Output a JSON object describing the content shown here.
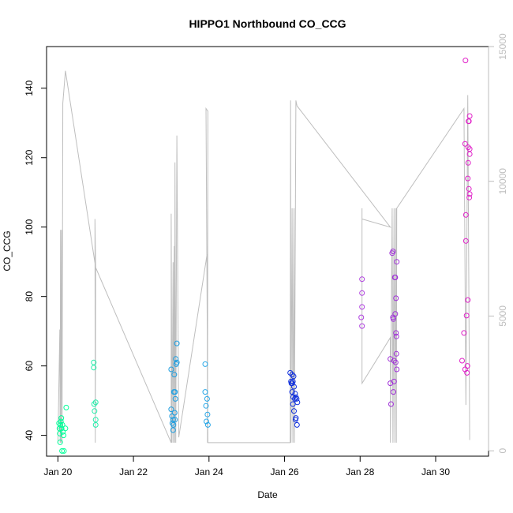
{
  "chart_data": {
    "type": "scatter",
    "title": "HIPPO1 Northbound CO_CCG",
    "xlabel": "Date",
    "ylabel": "CO_CCG",
    "x_ticks": [
      "Jan 20",
      "Jan 22",
      "Jan 24",
      "Jan 26",
      "Jan 28",
      "Jan 30"
    ],
    "x_tick_values": [
      20,
      22,
      24,
      26,
      28,
      30
    ],
    "xlim": [
      19.7,
      31.4
    ],
    "y_ticks": [
      "40",
      "60",
      "80",
      "100",
      "120",
      "140"
    ],
    "y_tick_values": [
      40,
      60,
      80,
      100,
      120,
      140
    ],
    "ylim": [
      34,
      152
    ],
    "y2_ticks": [
      "0",
      "5000",
      "10000",
      "15000"
    ],
    "y2_tick_values": [
      0,
      5000,
      10000,
      15000
    ],
    "y2lim": [
      -200,
      15000
    ],
    "grid": false,
    "colors": {
      "altitude_line": "#bebebe",
      "secondary_axis": "#bebebe",
      "axis": "#000000"
    },
    "points": [
      {
        "x": 20.03,
        "y": 43.5,
        "color": "#00ff99"
      },
      {
        "x": 20.04,
        "y": 42.0,
        "color": "#00ff99"
      },
      {
        "x": 20.05,
        "y": 40.5,
        "color": "#00ff99"
      },
      {
        "x": 20.06,
        "y": 38.0,
        "color": "#00ff99"
      },
      {
        "x": 20.07,
        "y": 43.0,
        "color": "#00ff99"
      },
      {
        "x": 20.08,
        "y": 44.0,
        "color": "#00ff99"
      },
      {
        "x": 20.09,
        "y": 45.0,
        "color": "#00ff99"
      },
      {
        "x": 20.1,
        "y": 42.0,
        "color": "#00ff99"
      },
      {
        "x": 20.11,
        "y": 35.5,
        "color": "#00ff99"
      },
      {
        "x": 20.12,
        "y": 43.0,
        "color": "#00ff99"
      },
      {
        "x": 20.13,
        "y": 41.0,
        "color": "#00ff99"
      },
      {
        "x": 20.15,
        "y": 40.0,
        "color": "#00ff99"
      },
      {
        "x": 20.16,
        "y": 35.5,
        "color": "#00ff99"
      },
      {
        "x": 20.2,
        "y": 42.0,
        "color": "#00ff99"
      },
      {
        "x": 20.22,
        "y": 48.0,
        "color": "#00ff99"
      },
      {
        "x": 20.95,
        "y": 61.0,
        "color": "#22eeaa"
      },
      {
        "x": 20.95,
        "y": 59.5,
        "color": "#22eeaa"
      },
      {
        "x": 20.96,
        "y": 49.0,
        "color": "#22eeaa"
      },
      {
        "x": 20.97,
        "y": 47.0,
        "color": "#22eeaa"
      },
      {
        "x": 21.0,
        "y": 49.5,
        "color": "#22eeaa"
      },
      {
        "x": 21.0,
        "y": 44.5,
        "color": "#22eeaa"
      },
      {
        "x": 21.0,
        "y": 43.0,
        "color": "#22eeaa"
      },
      {
        "x": 23.0,
        "y": 59.0,
        "color": "#1e9ee0"
      },
      {
        "x": 23.0,
        "y": 47.5,
        "color": "#1e9ee0"
      },
      {
        "x": 23.02,
        "y": 45.5,
        "color": "#1e9ee0"
      },
      {
        "x": 23.03,
        "y": 43.5,
        "color": "#1e9ee0"
      },
      {
        "x": 23.05,
        "y": 44.5,
        "color": "#1e9ee0"
      },
      {
        "x": 23.05,
        "y": 41.5,
        "color": "#1e9ee0"
      },
      {
        "x": 23.06,
        "y": 43.0,
        "color": "#1e9ee0"
      },
      {
        "x": 23.07,
        "y": 52.5,
        "color": "#1e9ee0"
      },
      {
        "x": 23.08,
        "y": 57.5,
        "color": "#1e9ee0"
      },
      {
        "x": 23.09,
        "y": 46.5,
        "color": "#1e9ee0"
      },
      {
        "x": 23.1,
        "y": 52.5,
        "color": "#1e9ee0"
      },
      {
        "x": 23.1,
        "y": 44.5,
        "color": "#1e9ee0"
      },
      {
        "x": 23.11,
        "y": 50.5,
        "color": "#1e9ee0"
      },
      {
        "x": 23.12,
        "y": 62.0,
        "color": "#1e9ee0"
      },
      {
        "x": 23.13,
        "y": 60.5,
        "color": "#1e9ee0"
      },
      {
        "x": 23.15,
        "y": 61.0,
        "color": "#1e9ee0"
      },
      {
        "x": 23.15,
        "y": 66.5,
        "color": "#1e9ee0"
      },
      {
        "x": 23.9,
        "y": 60.5,
        "color": "#2aa8e8"
      },
      {
        "x": 23.9,
        "y": 52.5,
        "color": "#2aa8e8"
      },
      {
        "x": 23.92,
        "y": 48.5,
        "color": "#2aa8e8"
      },
      {
        "x": 23.93,
        "y": 44.0,
        "color": "#2aa8e8"
      },
      {
        "x": 23.95,
        "y": 50.5,
        "color": "#2aa8e8"
      },
      {
        "x": 23.96,
        "y": 46.0,
        "color": "#2aa8e8"
      },
      {
        "x": 23.97,
        "y": 43.0,
        "color": "#2aa8e8"
      },
      {
        "x": 26.15,
        "y": 58.0,
        "color": "#1030dd"
      },
      {
        "x": 26.17,
        "y": 55.5,
        "color": "#1030dd"
      },
      {
        "x": 26.18,
        "y": 55.0,
        "color": "#1030dd"
      },
      {
        "x": 26.2,
        "y": 57.5,
        "color": "#1030dd"
      },
      {
        "x": 26.2,
        "y": 55.0,
        "color": "#1030dd"
      },
      {
        "x": 26.2,
        "y": 52.5,
        "color": "#1030dd"
      },
      {
        "x": 26.22,
        "y": 55.5,
        "color": "#1030dd"
      },
      {
        "x": 26.22,
        "y": 49.0,
        "color": "#1030dd"
      },
      {
        "x": 26.23,
        "y": 51.0,
        "color": "#1030dd"
      },
      {
        "x": 26.24,
        "y": 57.0,
        "color": "#1030dd"
      },
      {
        "x": 26.25,
        "y": 54.0,
        "color": "#1030dd"
      },
      {
        "x": 26.25,
        "y": 47.0,
        "color": "#1030dd"
      },
      {
        "x": 26.27,
        "y": 50.5,
        "color": "#1030dd"
      },
      {
        "x": 26.28,
        "y": 52.0,
        "color": "#1030dd"
      },
      {
        "x": 26.29,
        "y": 44.5,
        "color": "#1030dd"
      },
      {
        "x": 26.3,
        "y": 51.0,
        "color": "#1030dd"
      },
      {
        "x": 26.3,
        "y": 45.0,
        "color": "#1030dd"
      },
      {
        "x": 26.32,
        "y": 50.5,
        "color": "#1030dd"
      },
      {
        "x": 26.33,
        "y": 43.0,
        "color": "#1030dd"
      },
      {
        "x": 26.34,
        "y": 49.5,
        "color": "#1030dd"
      },
      {
        "x": 28.05,
        "y": 85.0,
        "color": "#b040e0"
      },
      {
        "x": 28.05,
        "y": 81.0,
        "color": "#b040e0"
      },
      {
        "x": 28.05,
        "y": 77.0,
        "color": "#b040e0"
      },
      {
        "x": 28.03,
        "y": 74.0,
        "color": "#b040e0"
      },
      {
        "x": 28.05,
        "y": 71.5,
        "color": "#b040e0"
      },
      {
        "x": 28.8,
        "y": 62.0,
        "color": "#a030d8"
      },
      {
        "x": 28.8,
        "y": 55.0,
        "color": "#a030d8"
      },
      {
        "x": 28.82,
        "y": 49.0,
        "color": "#a030d8"
      },
      {
        "x": 28.85,
        "y": 92.5,
        "color": "#a030d8"
      },
      {
        "x": 28.87,
        "y": 93.0,
        "color": "#a030d8"
      },
      {
        "x": 28.87,
        "y": 74.0,
        "color": "#a030d8"
      },
      {
        "x": 28.88,
        "y": 73.5,
        "color": "#a030d8"
      },
      {
        "x": 28.88,
        "y": 52.5,
        "color": "#a030d8"
      },
      {
        "x": 28.9,
        "y": 61.5,
        "color": "#a030d8"
      },
      {
        "x": 28.9,
        "y": 55.5,
        "color": "#a030d8"
      },
      {
        "x": 28.92,
        "y": 85.5,
        "color": "#a030d8"
      },
      {
        "x": 28.93,
        "y": 85.5,
        "color": "#a030d8"
      },
      {
        "x": 28.93,
        "y": 75.0,
        "color": "#a030d8"
      },
      {
        "x": 28.94,
        "y": 61.0,
        "color": "#a030d8"
      },
      {
        "x": 28.95,
        "y": 79.5,
        "color": "#a030d8"
      },
      {
        "x": 28.95,
        "y": 69.5,
        "color": "#a030d8"
      },
      {
        "x": 28.96,
        "y": 68.5,
        "color": "#a030d8"
      },
      {
        "x": 28.96,
        "y": 63.5,
        "color": "#a030d8"
      },
      {
        "x": 28.97,
        "y": 90.0,
        "color": "#a030d8"
      },
      {
        "x": 28.97,
        "y": 59.0,
        "color": "#a030d8"
      },
      {
        "x": 30.7,
        "y": 61.5,
        "color": "#e020c8"
      },
      {
        "x": 30.75,
        "y": 69.5,
        "color": "#e020c8"
      },
      {
        "x": 30.78,
        "y": 59.0,
        "color": "#e020c8"
      },
      {
        "x": 30.78,
        "y": 124.0,
        "color": "#e020c8"
      },
      {
        "x": 30.79,
        "y": 148.0,
        "color": "#e020c8"
      },
      {
        "x": 30.8,
        "y": 103.5,
        "color": "#e020c8"
      },
      {
        "x": 30.8,
        "y": 96.0,
        "color": "#e020c8"
      },
      {
        "x": 30.82,
        "y": 74.5,
        "color": "#e020c8"
      },
      {
        "x": 30.83,
        "y": 58.0,
        "color": "#e020c8"
      },
      {
        "x": 30.84,
        "y": 60.0,
        "color": "#e020c8"
      },
      {
        "x": 30.85,
        "y": 79.0,
        "color": "#e020c8"
      },
      {
        "x": 30.85,
        "y": 114.0,
        "color": "#e020c8"
      },
      {
        "x": 30.86,
        "y": 118.5,
        "color": "#e020c8"
      },
      {
        "x": 30.86,
        "y": 123.0,
        "color": "#e020c8"
      },
      {
        "x": 30.87,
        "y": 130.5,
        "color": "#e020c8"
      },
      {
        "x": 30.88,
        "y": 130.5,
        "color": "#e020c8"
      },
      {
        "x": 30.88,
        "y": 111.0,
        "color": "#e020c8"
      },
      {
        "x": 30.89,
        "y": 108.5,
        "color": "#e020c8"
      },
      {
        "x": 30.9,
        "y": 132.0,
        "color": "#e020c8"
      },
      {
        "x": 30.9,
        "y": 122.5,
        "color": "#e020c8"
      },
      {
        "x": 30.9,
        "y": 121.0,
        "color": "#e020c8"
      },
      {
        "x": 30.9,
        "y": 109.5,
        "color": "#e020c8"
      }
    ],
    "altitude_line": [
      [
        20.0,
        300
      ],
      [
        20.05,
        4500
      ],
      [
        20.06,
        300
      ],
      [
        20.07,
        8200
      ],
      [
        20.08,
        300
      ],
      [
        20.1,
        8200
      ],
      [
        20.11,
        300
      ],
      [
        20.13,
        12900
      ],
      [
        20.2,
        14100
      ],
      [
        21.0,
        6800
      ],
      [
        20.98,
        8600
      ],
      [
        20.99,
        300
      ],
      [
        21.0,
        6800
      ],
      [
        23.0,
        300
      ],
      [
        23.0,
        8800
      ],
      [
        23.02,
        300
      ],
      [
        23.05,
        7000
      ],
      [
        23.06,
        300
      ],
      [
        23.08,
        7600
      ],
      [
        23.09,
        300
      ],
      [
        23.1,
        10700
      ],
      [
        23.12,
        300
      ],
      [
        23.15,
        11700
      ],
      [
        23.2,
        500
      ],
      [
        23.95,
        7300
      ],
      [
        23.96,
        300
      ],
      [
        23.97,
        12600
      ],
      [
        23.92,
        12700
      ],
      [
        23.97,
        300
      ],
      [
        26.15,
        300
      ],
      [
        26.16,
        13000
      ],
      [
        26.17,
        300
      ],
      [
        26.2,
        9000
      ],
      [
        26.22,
        300
      ],
      [
        26.25,
        9000
      ],
      [
        26.26,
        300
      ],
      [
        26.3,
        13000
      ],
      [
        26.33,
        12800
      ],
      [
        28.8,
        8300
      ],
      [
        28.05,
        8600
      ],
      [
        28.05,
        9000
      ],
      [
        28.05,
        2500
      ],
      [
        28.8,
        4200
      ],
      [
        28.8,
        300
      ],
      [
        28.85,
        9000
      ],
      [
        28.87,
        300
      ],
      [
        28.9,
        9000
      ],
      [
        28.92,
        300
      ],
      [
        28.95,
        9000
      ],
      [
        28.96,
        300
      ],
      [
        28.97,
        9000
      ],
      [
        30.75,
        12700
      ],
      [
        30.8,
        1700
      ],
      [
        30.85,
        13200
      ],
      [
        30.9,
        400
      ]
    ]
  }
}
